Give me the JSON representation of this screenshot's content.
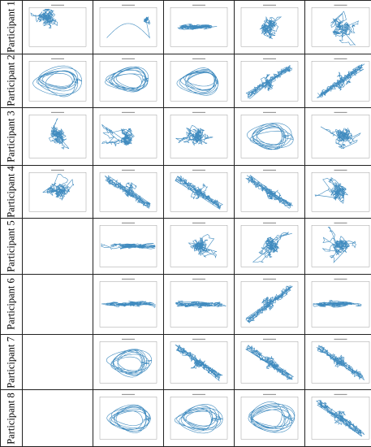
{
  "participants": [
    {
      "label": "Participant 1",
      "plots": [
        [
          "cluster",
          "tl"
        ],
        [
          "sweep",
          "tr"
        ],
        [
          "band",
          "h"
        ],
        [
          "cluster",
          "c"
        ],
        [
          "cluster",
          "c"
        ]
      ]
    },
    {
      "label": "Participant 2",
      "plots": [
        [
          "loops",
          "c"
        ],
        [
          "loops",
          "c"
        ],
        [
          "loops",
          "c"
        ],
        [
          "diag",
          "up"
        ],
        [
          "diag",
          "up"
        ]
      ]
    },
    {
      "label": "Participant 3",
      "plots": [
        [
          "cluster",
          "c"
        ],
        [
          "cluster",
          "c"
        ],
        [
          "cluster",
          "c"
        ],
        [
          "loops",
          "c"
        ],
        [
          "cluster",
          "c"
        ]
      ]
    },
    {
      "label": "Participant 4",
      "plots": [
        [
          "cluster",
          "c"
        ],
        [
          "diag",
          "down"
        ],
        [
          "diag",
          "down"
        ],
        [
          "diag",
          "down"
        ],
        [
          "cluster",
          "c"
        ]
      ]
    },
    {
      "label": "Participant 5",
      "plots": [
        null,
        [
          "band",
          "h"
        ],
        [
          "cluster",
          "c"
        ],
        [
          "cluster",
          "c"
        ],
        [
          "cluster",
          "c"
        ]
      ]
    },
    {
      "label": "Participant 6",
      "plots": [
        null,
        [
          "band",
          "h"
        ],
        [
          "band",
          "h"
        ],
        [
          "diag",
          "up"
        ],
        [
          "band",
          "h"
        ]
      ]
    },
    {
      "label": "Participant 7",
      "plots": [
        null,
        [
          "loops",
          "c"
        ],
        [
          "diag",
          "down"
        ],
        [
          "diag",
          "down"
        ],
        [
          "diag",
          "down"
        ]
      ]
    },
    {
      "label": "Participant 8",
      "plots": [
        null,
        [
          "loops",
          "c"
        ],
        [
          "loops",
          "c"
        ],
        [
          "loops",
          "c"
        ],
        [
          "diag",
          "down"
        ]
      ]
    }
  ],
  "colors": {
    "trace": "#1f77b4",
    "axis": "#888888",
    "border": "#222222"
  }
}
